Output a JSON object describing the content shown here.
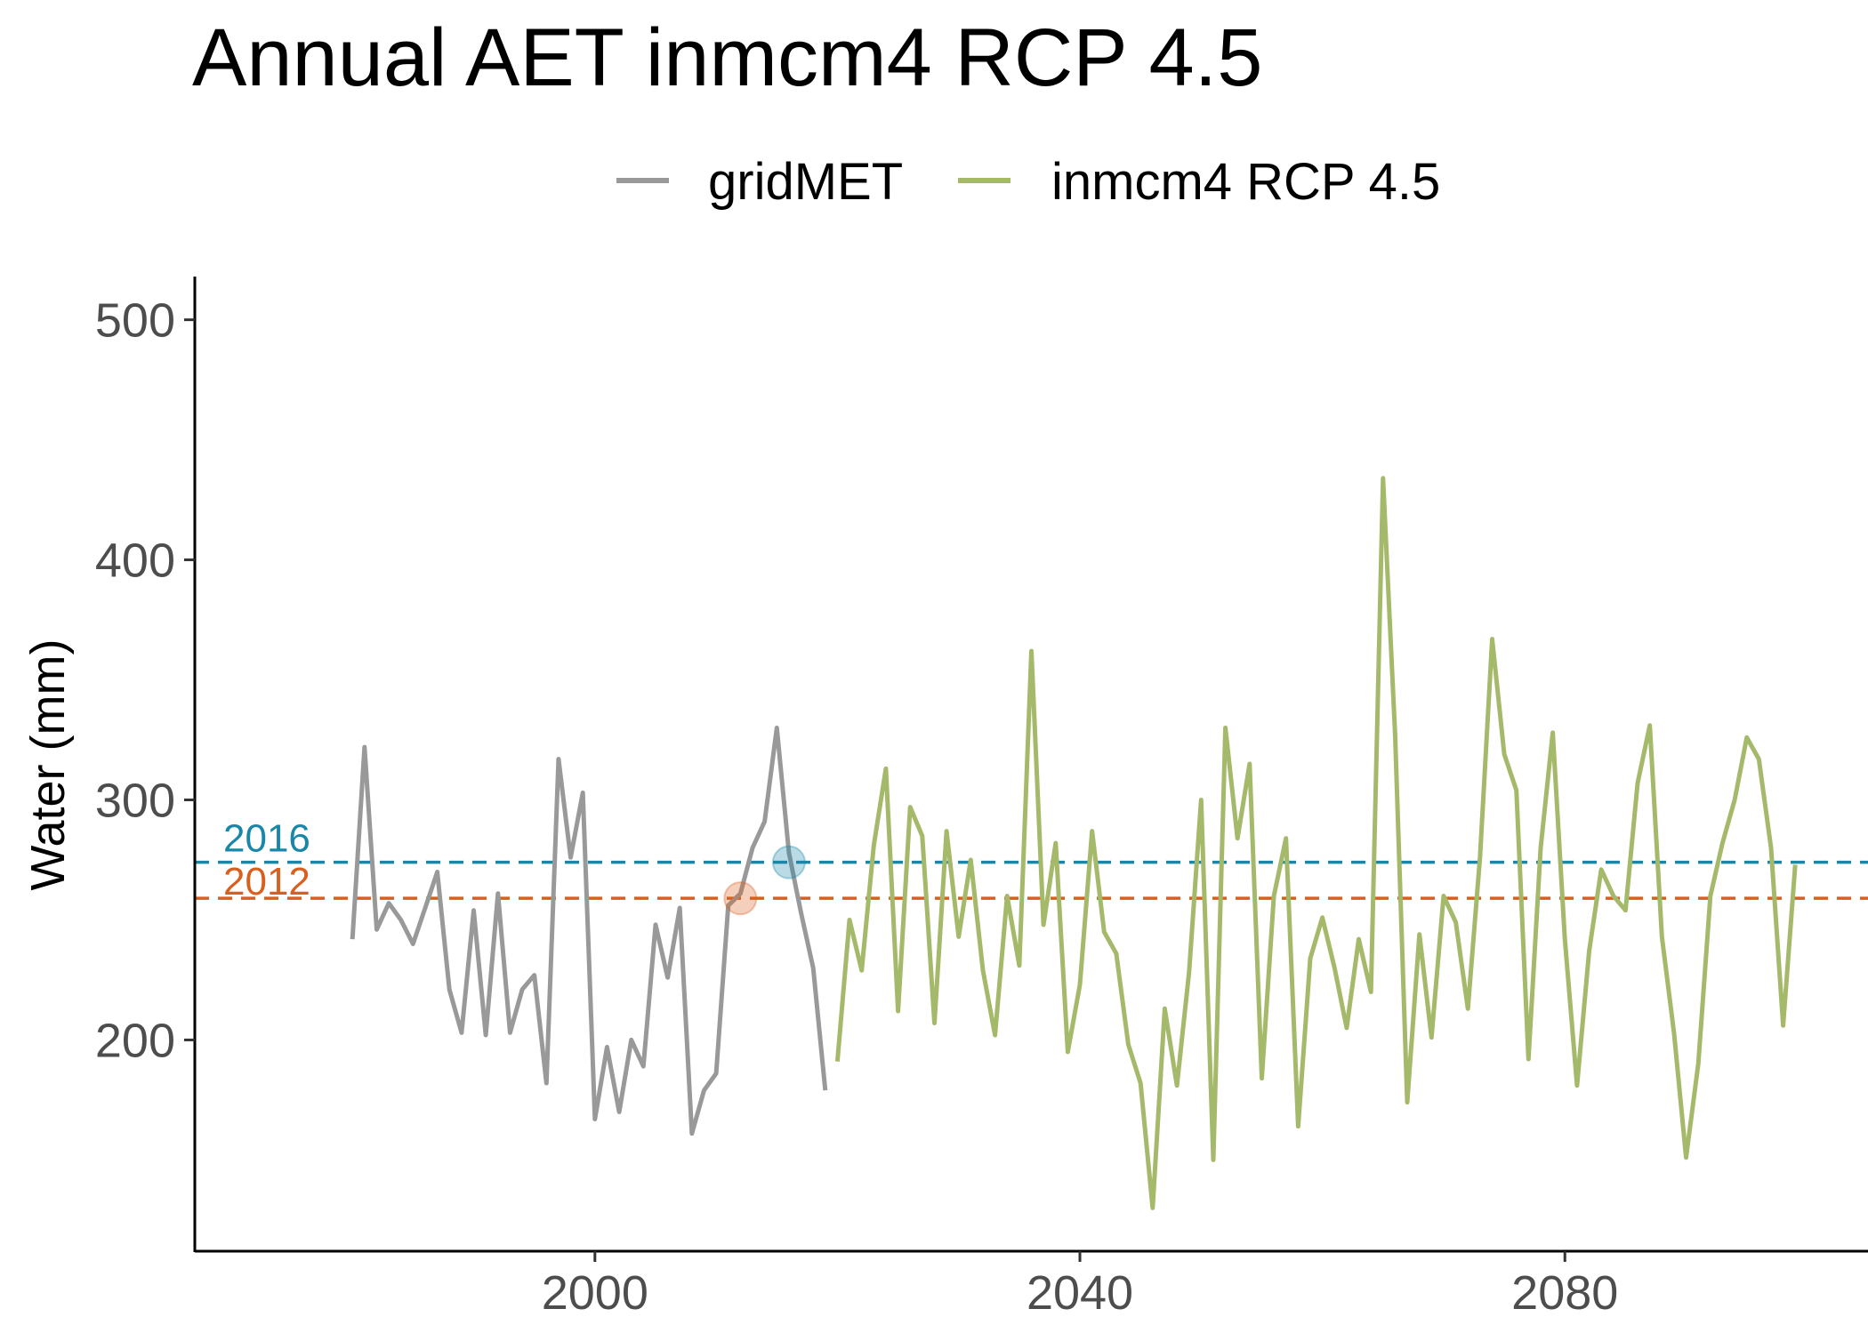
{
  "chart_data": {
    "type": "line",
    "title": "Annual AET inmcm4 RCP 4.5",
    "xlabel": "",
    "ylabel": "Water (mm)",
    "xlim": [
      1967,
      2105
    ],
    "ylim": [
      112,
      518
    ],
    "x_ticks": [
      2000,
      2040,
      2080
    ],
    "y_ticks": [
      200,
      300,
      400,
      500
    ],
    "grid": false,
    "legend_position": "top",
    "series": [
      {
        "name": "gridMET",
        "color": "#999999",
        "x": [
          1980,
          1981,
          1982,
          1983,
          1984,
          1985,
          1986,
          1987,
          1988,
          1989,
          1990,
          1991,
          1992,
          1993,
          1994,
          1995,
          1996,
          1997,
          1998,
          1999,
          2000,
          2001,
          2002,
          2003,
          2004,
          2005,
          2006,
          2007,
          2008,
          2009,
          2010,
          2011,
          2012,
          2013,
          2014,
          2015,
          2016,
          2017,
          2018,
          2019
        ],
        "values": [
          242,
          322,
          246,
          257,
          250,
          240,
          255,
          270,
          221,
          203,
          254,
          202,
          261,
          203,
          221,
          227,
          182,
          317,
          276,
          303,
          167,
          197,
          170,
          200,
          189,
          248,
          226,
          255,
          161,
          179,
          186,
          256,
          261,
          280,
          291,
          330,
          278,
          253,
          230,
          179
        ]
      },
      {
        "name": "inmcm4 RCP 4.5",
        "color": "#a5b96a",
        "x": [
          2020,
          2021,
          2022,
          2023,
          2024,
          2025,
          2026,
          2027,
          2028,
          2029,
          2030,
          2031,
          2032,
          2033,
          2034,
          2035,
          2036,
          2037,
          2038,
          2039,
          2040,
          2041,
          2042,
          2043,
          2044,
          2045,
          2046,
          2047,
          2048,
          2049,
          2050,
          2051,
          2052,
          2053,
          2054,
          2055,
          2056,
          2057,
          2058,
          2059,
          2060,
          2061,
          2062,
          2063,
          2064,
          2065,
          2066,
          2067,
          2068,
          2069,
          2070,
          2071,
          2072,
          2073,
          2074,
          2075,
          2076,
          2077,
          2078,
          2079,
          2080,
          2081,
          2082,
          2083,
          2084,
          2085,
          2086,
          2087,
          2088,
          2089,
          2090,
          2091,
          2092,
          2093,
          2094,
          2095,
          2096,
          2097,
          2098,
          2099
        ],
        "values": [
          191,
          250,
          229,
          281,
          313,
          212,
          297,
          285,
          207,
          287,
          243,
          275,
          229,
          202,
          260,
          231,
          362,
          248,
          282,
          195,
          223,
          287,
          245,
          236,
          198,
          182,
          130,
          213,
          181,
          228,
          300,
          150,
          330,
          284,
          315,
          184,
          260,
          284,
          164,
          234,
          251,
          230,
          205,
          242,
          220,
          434,
          327,
          174,
          244,
          201,
          260,
          249,
          213,
          276,
          367,
          319,
          304,
          192,
          280,
          328,
          242,
          181,
          237,
          271,
          260,
          254,
          307,
          331,
          243,
          203,
          151,
          190,
          260,
          282,
          300,
          326,
          317,
          280,
          206,
          273
        ]
      }
    ],
    "reference_lines": [
      {
        "label": "2016",
        "value": 274,
        "color": "#1a87a8",
        "marker_x": 2016
      },
      {
        "label": "2012",
        "value": 259,
        "color": "#d95f1f",
        "marker_x": 2012
      }
    ]
  }
}
